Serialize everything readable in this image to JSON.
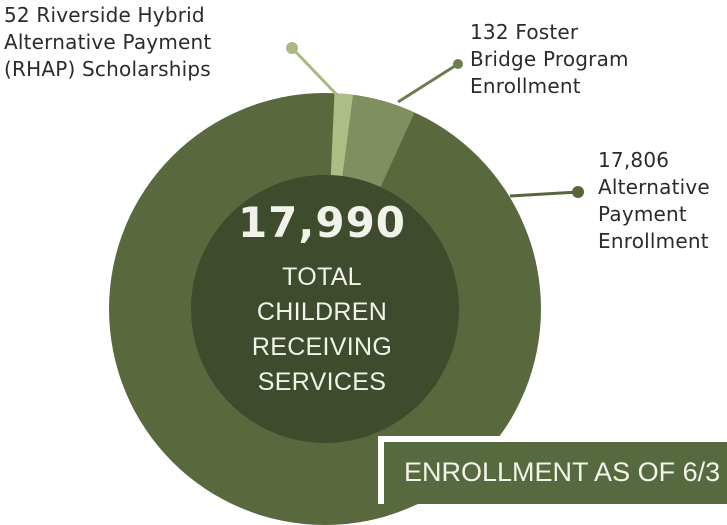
{
  "chart_data": {
    "type": "pie",
    "total": 17990,
    "slices": [
      {
        "label": "17,806\nAlternative\nPayment\nEnrollment",
        "value": 17806,
        "color": "#59693d"
      },
      {
        "label": "52 Riverside Hybrid\nAlternative Payment\n(RHAP) Scholarships",
        "value": 52,
        "color": "#aebc86"
      },
      {
        "label": "132 Foster\nBridge Program\nEnrollment",
        "value": 132,
        "color": "#7f8f60"
      }
    ],
    "center": {
      "number": "17,990",
      "caption": "TOTAL\nCHILDREN\nRECEIVING\nSERVICES"
    },
    "banner": "ENROLLMENT AS OF 6/3",
    "colors": {
      "inner_disc": "#3e4b2d",
      "ring": "#59693d",
      "rhap": "#aebc86",
      "foster": "#7f8f60",
      "leader_rhap": "#a8b982",
      "leader_foster": "#6e7d4f",
      "leader_ap": "#55663b"
    }
  }
}
